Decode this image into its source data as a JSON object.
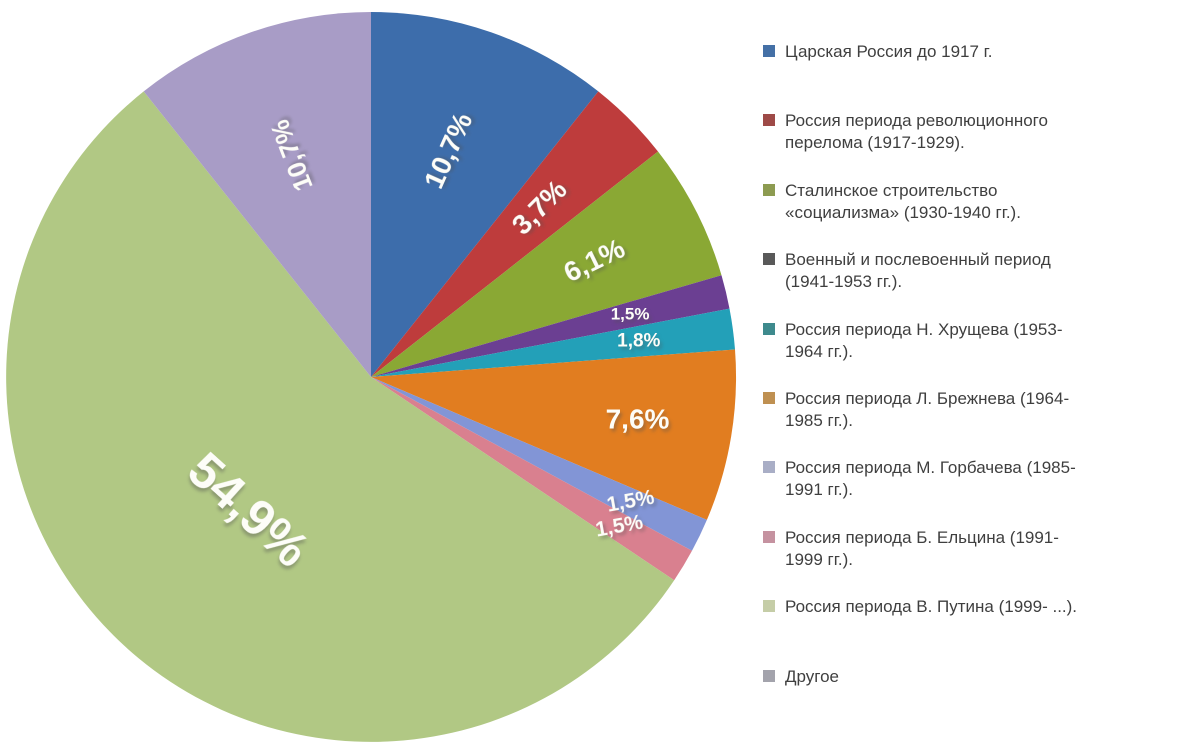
{
  "chart_data": {
    "type": "pie",
    "title": "",
    "legend_position": "right",
    "background_color": "#ffffff",
    "label_text_color": "#fdfdf8",
    "legend_text_color": "#3f3f3f",
    "total": 100.0,
    "slices": [
      {
        "label": "Царская Россия до 1917 г.",
        "value": 10.7,
        "display": "10,7%",
        "color": "#3d6dab",
        "legend_color": "#4470a6",
        "label_rot": -66,
        "label_r": 0.655,
        "label_size": 28
      },
      {
        "label": "Россия периода революционного\nперелома (1917-1929).",
        "value": 3.7,
        "display": "3,7%",
        "color": "#be3c3c",
        "legend_color": "#9e4a47",
        "label_rot": -45,
        "label_r": 0.655,
        "label_size": 28
      },
      {
        "label": "Сталинское строительство\n«социализма» (1930-1940 гг.).",
        "value": 6.1,
        "display": "6,1%",
        "color": "#8aa834",
        "legend_color": "#8d9b51",
        "label_rot": -26,
        "label_r": 0.69,
        "label_size": 28
      },
      {
        "label": "Военный и послевоенный период\n(1941-1953 гг.).",
        "value": 1.5,
        "display": "1,5%",
        "color": "#6b3f92",
        "legend_color": "#595959",
        "label_rot": 0,
        "label_r": 0.73,
        "label_size": 17
      },
      {
        "label": "Россия периода Н. Хрущева (1953-\n1964 гг.).",
        "value": 1.8,
        "display": "1,8%",
        "color": "#23a0b8",
        "legend_color": "#3e8a8d",
        "label_rot": 0,
        "label_r": 0.74,
        "label_size": 19
      },
      {
        "label": "Россия периода Л. Брежнева (1964-\n1985 гг.).",
        "value": 7.6,
        "display": "7,6%",
        "color": "#e17d20",
        "legend_color": "#bf9051",
        "label_rot": 0,
        "label_r": 0.74,
        "label_size": 28
      },
      {
        "label": "Россия периода М. Горбачева (1985-\n1991 гг.).",
        "value": 1.5,
        "display": "1,5%",
        "color": "#8295d6",
        "legend_color": "#a9aec6",
        "label_rot": -10,
        "label_r": 0.79,
        "label_size": 21
      },
      {
        "label": "Россия периода Б. Ельцина (1991-\n1999 гг.).",
        "value": 1.5,
        "display": "1,5%",
        "color": "#d9808f",
        "legend_color": "#c592a0",
        "label_rot": -10,
        "label_r": 0.795,
        "label_size": 21
      },
      {
        "label": "Россия периода В. Путина (1999- ...).",
        "value": 54.9,
        "display": "54,9%",
        "color": "#b1c884",
        "legend_color": "#c5cda7",
        "label_rot": 42,
        "label_r": 0.505,
        "label_size": 50
      },
      {
        "label": "Другое",
        "value": 10.7,
        "display": "10,7%",
        "color": "#a89cc6",
        "legend_color": "#a3a3ac",
        "label_rot": -111,
        "label_r": 0.645,
        "label_size": 26
      }
    ]
  }
}
